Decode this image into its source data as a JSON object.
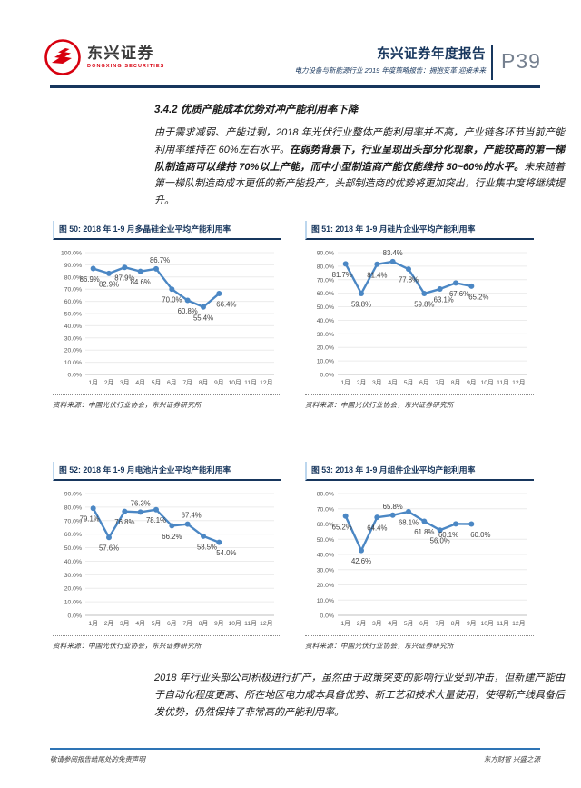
{
  "header": {
    "logo_cn": "东兴证券",
    "logo_en": "DONGXING SECURITIES",
    "report_title": "东兴证券年度报告",
    "report_subtitle": "电力设备与新能源行业 2019 年度策略报告：拥抱变革 迎接未来",
    "page_number": "P39"
  },
  "section": {
    "heading": "3.4.2 优质产能成本优势对冲产能利用率下降",
    "para1_normal1": "由于需求减弱、产能过剩，2018 年光伏行业整体产能利用率并不高，产业链各环节当前产能利用率维持在 60%左右水平。",
    "para1_bold": "在弱势背景下，行业呈现出头部分化现象，产能较高的第一梯队制造商可以维持 70%以上产能，而中小型制造商产能仅能维持 50~60%的水平。",
    "para1_normal2": "未来随着第一梯队制造商成本更低的新产能投产，头部制造商的优势将更加突出，行业集中度将继续提升。",
    "para2": "2018 年行业头部公司积极进行扩产，虽然由于政策突变的影响行业受到冲击，但新建产能由于自动化程度更高、所在地区电力成本具备优势、新工艺和技术大量使用，使得新产线具备后发优势，仍然保持了非常高的产能利用率。"
  },
  "source_note": "资料来源：中国光伏行业协会，东兴证券研究所",
  "footer": {
    "left": "敬请参阅报告结尾处的免责声明",
    "right": "东方财智 兴盛之源"
  },
  "chart_data": [
    {
      "type": "line",
      "title": "图 50: 2018 年 1-9 月多晶硅企业平均产能利用率",
      "categories": [
        "1月",
        "2月",
        "3月",
        "4月",
        "5月",
        "6月",
        "7月",
        "8月",
        "9月",
        "10月",
        "11月",
        "12月"
      ],
      "values": [
        86.9,
        82.9,
        87.9,
        84.6,
        86.7,
        70.0,
        60.8,
        55.4,
        66.4
      ],
      "labels": [
        "86.9%",
        "82.9%",
        "87.9%",
        "84.6%",
        "86.7%",
        "70.0%",
        "60.8%",
        "55.4%",
        "66.4%"
      ],
      "label_side": [
        "below",
        "below",
        "below",
        "below",
        "above",
        "below",
        "below",
        "below",
        "below"
      ],
      "label_dx": [
        -4,
        0,
        0,
        0,
        4,
        0,
        0,
        0,
        8
      ],
      "ylim": [
        0,
        100
      ],
      "ytick_step": 10,
      "xlabel": "",
      "ylabel": "",
      "grid": true,
      "legend": "none",
      "line_color": "#4b87c4"
    },
    {
      "type": "line",
      "title": "图 51: 2018 年 1-9 月硅片企业平均产能利用率",
      "categories": [
        "1月",
        "2月",
        "3月",
        "4月",
        "5月",
        "6月",
        "7月",
        "8月",
        "9月",
        "10月",
        "11月",
        "12月"
      ],
      "values": [
        81.7,
        59.8,
        81.4,
        83.4,
        77.8,
        59.8,
        63.1,
        67.6,
        65.2
      ],
      "labels": [
        "81.7%",
        "59.8%",
        "81.4%",
        "83.4%",
        "77.8%",
        "59.8%",
        "63.1%",
        "67.6%",
        "65.2%"
      ],
      "label_side": [
        "below",
        "below",
        "below",
        "above",
        "below",
        "below",
        "below",
        "below",
        "below"
      ],
      "label_dx": [
        -4,
        0,
        0,
        0,
        0,
        0,
        4,
        4,
        8
      ],
      "ylim": [
        0,
        90
      ],
      "ytick_step": 10,
      "xlabel": "",
      "ylabel": "",
      "grid": true,
      "legend": "none",
      "line_color": "#4b87c4"
    },
    {
      "type": "line",
      "title": "图 52: 2018 年 1-9 月电池片企业平均产能利用率",
      "categories": [
        "1月",
        "2月",
        "3月",
        "4月",
        "5月",
        "6月",
        "7月",
        "8月",
        "9月",
        "10月",
        "11月",
        "12月"
      ],
      "values": [
        79.1,
        57.6,
        76.8,
        76.3,
        78.1,
        66.2,
        67.4,
        58.5,
        54.0
      ],
      "labels": [
        "79.1%",
        "57.6%",
        "76.8%",
        "76.3%",
        "78.1%",
        "66.2%",
        "67.4%",
        "58.5%",
        "54.0%"
      ],
      "label_side": [
        "below",
        "below",
        "below",
        "above",
        "below",
        "below",
        "above",
        "below",
        "below"
      ],
      "label_dx": [
        -4,
        0,
        0,
        0,
        0,
        0,
        4,
        4,
        8
      ],
      "ylim": [
        0,
        90
      ],
      "ytick_step": 10,
      "xlabel": "",
      "ylabel": "",
      "grid": true,
      "legend": "none",
      "line_color": "#4b87c4"
    },
    {
      "type": "line",
      "title": "图 53: 2018 年 1-9 月组件企业平均产能利用率",
      "categories": [
        "1月",
        "2月",
        "3月",
        "4月",
        "5月",
        "6月",
        "7月",
        "8月",
        "9月",
        "10月",
        "11月",
        "12月"
      ],
      "values": [
        65.2,
        42.6,
        64.4,
        65.8,
        68.1,
        61.8,
        56.0,
        60.1,
        60.0
      ],
      "labels": [
        "65.2%",
        "42.6%",
        "64.4%",
        "65.8%",
        "68.1%",
        "61.8%",
        "56.0%",
        "60.1%",
        "60.0%"
      ],
      "label_side": [
        "below",
        "below",
        "below",
        "above",
        "below",
        "below",
        "below",
        "below",
        "below"
      ],
      "label_dx": [
        -4,
        0,
        0,
        0,
        0,
        0,
        0,
        -8,
        10
      ],
      "ylim": [
        0,
        80
      ],
      "ytick_step": 10,
      "xlabel": "",
      "ylabel": "",
      "grid": true,
      "legend": "none",
      "line_color": "#4b87c4"
    }
  ]
}
